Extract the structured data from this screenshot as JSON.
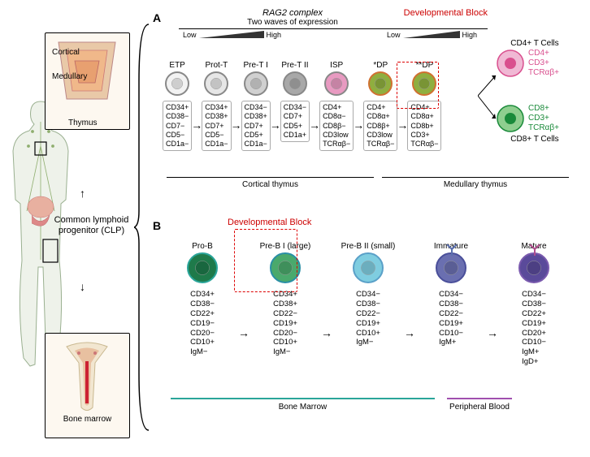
{
  "left": {
    "thymus": {
      "cortical": "Cortical",
      "medullary": "Medullary",
      "label": "Thymus",
      "colors": {
        "outer": "#e9c9a8",
        "cortical": "#f0b88a",
        "medullary": "#e8a070"
      }
    },
    "clp": "Common lymphoid progenitor (CLP)",
    "bone_marrow": {
      "label": "Bone marrow"
    },
    "body_color": "#c7d8c0"
  },
  "panelA": {
    "label": "A",
    "header1": "RAG2 complex",
    "header2": "Two waves of expression",
    "dev_block": "Developmental Block",
    "low": "Low",
    "high": "High",
    "stages": [
      {
        "name": "ETP",
        "fill": "#f2f2f2",
        "markers": [
          "CD34+",
          "CD38−",
          "CD7−",
          "CD5−",
          "CD1a−"
        ]
      },
      {
        "name": "Prot-T",
        "fill": "#e6e6e6",
        "markers": [
          "CD34+",
          "CD38+",
          "CD7+",
          "CD5−",
          "CD1a−"
        ]
      },
      {
        "name": "Pre-T I",
        "fill": "#d0d0d0",
        "markers": [
          "CD34−",
          "CD38+",
          "CD7+",
          "CD5+",
          "CD1a−"
        ]
      },
      {
        "name": "Pre-T II",
        "fill": "#a8a8a8",
        "markers": [
          "CD34−",
          "CD7+",
          "CD5+",
          "CD1a+"
        ]
      },
      {
        "name": "ISP",
        "fill": "#e89ac1",
        "markers": [
          "CD4+",
          "CD8α−",
          "CD8β−",
          "CD3low",
          "TCRαβ−"
        ]
      },
      {
        "name": "*DP",
        "fill": "#8fae3f",
        "ring": "#d07030",
        "markers": [
          "CD4+",
          "CD8α+",
          "CD8β+",
          "CD3low",
          "TCRαβ−"
        ]
      },
      {
        "name": "**DP",
        "fill": "#8fae3f",
        "ring": "#d07030",
        "markers": [
          "CD4+",
          "CD8α+",
          "CD8b+",
          "CD3+",
          "TCRαβ−"
        ]
      }
    ],
    "cd4_cell": {
      "title": "CD4+ T Cells",
      "markers": [
        "CD4+",
        "CD3+",
        "TCRαβ+"
      ],
      "color": "#e89ac1"
    },
    "cd8_cell": {
      "title": "CD8+ T Cells",
      "markers": [
        "CD8+",
        "CD3+",
        "TCRαβ+"
      ],
      "color": "#5aab5a"
    },
    "region_cortical": "Cortical thymus",
    "region_medullary": "Medullary thymus"
  },
  "panelB": {
    "label": "B",
    "dev_block": "Developmental Block",
    "stages": [
      {
        "name": "Pro-B",
        "fill": "#1e7a4a",
        "ring": "#2aa59a",
        "markers": [
          "CD34+",
          "CD38−",
          "CD22+",
          "CD19−",
          "CD20−",
          "CD10+",
          "IgM−"
        ]
      },
      {
        "name": "Pre-B I (large)",
        "fill": "#4aa96c",
        "ring": "#2a8fa5",
        "markers": [
          "CD34+",
          "CD38+",
          "CD22−",
          "CD19+",
          "CD20−",
          "CD10+",
          "IgM−"
        ]
      },
      {
        "name": "Pre-B II (small)",
        "fill": "#7fcde0",
        "ring": "#5aa0c8",
        "markers": [
          "CD34−",
          "CD38−",
          "CD22−",
          "CD19+",
          "CD10+",
          "IgM−"
        ]
      },
      {
        "name": "Immature",
        "fill": "#6a6fb0",
        "ring": "#4a4f9a",
        "receptor": true,
        "rcolor": "#5a6fae",
        "markers": [
          "CD34−",
          "CD38−",
          "CD22−",
          "CD19+",
          "CD10−",
          "IgM+"
        ]
      },
      {
        "name": "Mature",
        "fill": "#5a4a9a",
        "ring": "#7a5aae",
        "receptor": true,
        "rcolor": "#b04f8e",
        "markers": [
          "CD34−",
          "CD38−",
          "CD22+",
          "CD19+",
          "CD20+",
          "CD10−",
          "IgM+",
          "IgD+"
        ]
      }
    ],
    "region_bm": "Bone Marrow",
    "region_pb": "Peripheral Blood"
  }
}
